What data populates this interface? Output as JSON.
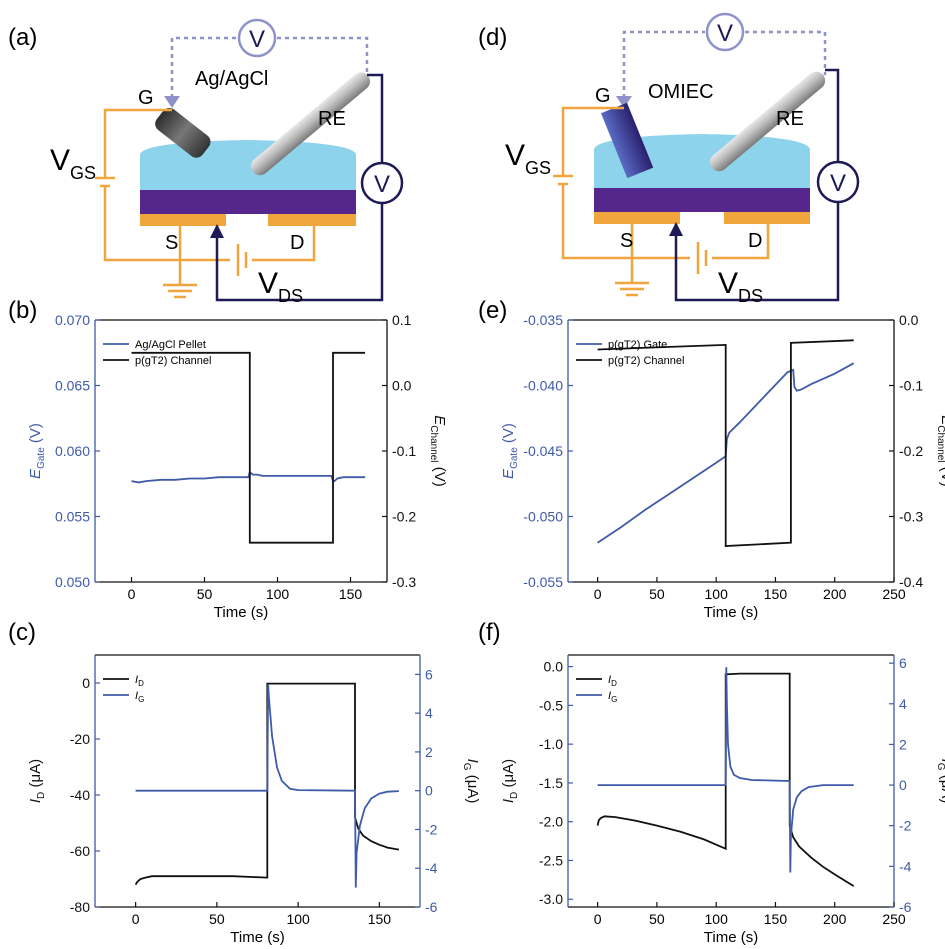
{
  "colors": {
    "blue": "#3f5aa8",
    "black": "#111111",
    "orange": "#f0a63c",
    "electrolyte": "#8dd3ec",
    "channel": "#55278d",
    "navy": "#1d1a55",
    "wire_dotted": "#8d93c8",
    "omiec": "#3a2f8a"
  },
  "panel_labels": [
    "(a)",
    "(b)",
    "(c)",
    "(d)",
    "(e)",
    "(f)"
  ],
  "schematic_a": {
    "gate_label": "G",
    "electrode_label": "Ag/AgCl",
    "re_label": "RE",
    "vgs_main": "V",
    "vgs_sub": "GS",
    "vds_main": "V",
    "vds_sub": "DS",
    "s_label": "S",
    "d_label": "D",
    "meter": "V"
  },
  "schematic_d": {
    "gate_label": "G",
    "electrode_label": "OMIEC",
    "re_label": "RE",
    "vgs_main": "V",
    "vgs_sub": "GS",
    "vds_main": "V",
    "vds_sub": "DS",
    "s_label": "S",
    "d_label": "D",
    "meter": "V"
  },
  "chart_data": [
    {
      "panel": "(b)",
      "type": "line",
      "xlabel": "Time (s)",
      "ylabel_left_main": "E",
      "ylabel_left_sub": "Gate",
      "ylabel_left_unit": " (V)",
      "ylabel_right_main": "E",
      "ylabel_right_sub": "Channel",
      "ylabel_right_unit": " (V)",
      "xlim": [
        -25,
        175
      ],
      "ylim_left": [
        0.05,
        0.07
      ],
      "ylim_right": [
        -0.3,
        0.1
      ],
      "xticks": [
        "0",
        "50",
        "100",
        "150"
      ],
      "yticks_left": [
        "0.050",
        "0.055",
        "0.060",
        "0.065",
        "0.070"
      ],
      "yticks_right": [
        "-0.3",
        "-0.2",
        "-0.1",
        "0.0",
        "0.1"
      ],
      "legend_position": "top-left",
      "series": [
        {
          "name": "Ag/AgCl Pellet",
          "axis": "left",
          "color": "blue",
          "x": [
            0,
            5,
            10,
            20,
            30,
            40,
            50,
            60,
            70,
            80,
            81,
            82,
            83,
            86,
            90,
            100,
            110,
            120,
            130,
            137,
            138,
            139,
            141,
            145,
            150,
            160
          ],
          "y": [
            0.0577,
            0.0576,
            0.0577,
            0.0578,
            0.0578,
            0.0579,
            0.0579,
            0.058,
            0.058,
            0.058,
            0.0584,
            0.0583,
            0.0582,
            0.0582,
            0.0581,
            0.0581,
            0.0581,
            0.0581,
            0.0581,
            0.0581,
            0.0577,
            0.0577,
            0.0579,
            0.058,
            0.058,
            0.058
          ]
        },
        {
          "name": "p(gT2) Channel",
          "axis": "right",
          "color": "black",
          "x": [
            0,
            81,
            81,
            138,
            138,
            160
          ],
          "y": [
            0.05,
            0.05,
            -0.24,
            -0.24,
            0.05,
            0.05
          ]
        }
      ]
    },
    {
      "panel": "(c)",
      "type": "line",
      "xlabel": "Time (s)",
      "ylabel_left_main": "I",
      "ylabel_left_sub": "D",
      "ylabel_left_unit": " (μA)",
      "ylabel_right_main": "I",
      "ylabel_right_sub": "G",
      "ylabel_right_unit": " (μA)",
      "xlim": [
        -25,
        175
      ],
      "ylim_left": [
        -80,
        10
      ],
      "ylim_right": [
        -6,
        7
      ],
      "xticks": [
        "0",
        "50",
        "100",
        "150"
      ],
      "yticks_left": [
        "-80",
        "-60",
        "-40",
        "-20",
        "0"
      ],
      "yticks_right": [
        "-6",
        "-4",
        "-2",
        "0",
        "2",
        "4",
        "6"
      ],
      "legend_position": "top-left",
      "series": [
        {
          "name": "I",
          "sub": "D",
          "axis": "left",
          "color": "black",
          "x": [
            0,
            1,
            3,
            6,
            10,
            20,
            40,
            60,
            81,
            81,
            100,
            135,
            135,
            137,
            140,
            145,
            150,
            155,
            162
          ],
          "y": [
            -72,
            -71,
            -70,
            -69.5,
            -69,
            -69,
            -69,
            -69,
            -69.5,
            -0.2,
            -0.2,
            -0.2,
            -48,
            -52,
            -54.5,
            -56.5,
            -57.8,
            -58.8,
            -59.5
          ]
        },
        {
          "name": "I",
          "sub": "G",
          "axis": "right",
          "color": "blue",
          "x": [
            0,
            81,
            81.5,
            82,
            84,
            87,
            90,
            95,
            100,
            135,
            135.5,
            136,
            138,
            141,
            145,
            150,
            155,
            162
          ],
          "y": [
            0,
            0,
            5.5,
            4.8,
            2.8,
            1.2,
            0.5,
            0.1,
            0.03,
            0,
            -5,
            -3.2,
            -1.8,
            -0.9,
            -0.4,
            -0.15,
            -0.05,
            -0.02
          ]
        }
      ]
    },
    {
      "panel": "(e)",
      "type": "line",
      "xlabel": "Time (s)",
      "ylabel_left_main": "E",
      "ylabel_left_sub": "Gate",
      "ylabel_left_unit": " (V)",
      "ylabel_right_main": "E",
      "ylabel_right_sub": "Channel",
      "ylabel_right_unit": " (V)",
      "xlim": [
        -25,
        250
      ],
      "ylim_left": [
        -0.055,
        -0.035
      ],
      "ylim_right": [
        -0.4,
        0.0
      ],
      "xticks": [
        "0",
        "50",
        "100",
        "150",
        "200",
        "250"
      ],
      "yticks_left": [
        "-0.055",
        "-0.050",
        "-0.045",
        "-0.040",
        "-0.035"
      ],
      "yticks_right": [
        "-0.4",
        "-0.3",
        "-0.2",
        "-0.1",
        "0.0"
      ],
      "legend_position": "top-left",
      "series": [
        {
          "name": "p(gT2) Gate",
          "axis": "left",
          "color": "blue",
          "x": [
            0,
            20,
            40,
            60,
            80,
            100,
            108,
            109,
            111,
            120,
            140,
            160,
            165,
            166,
            168,
            172,
            180,
            200,
            216
          ],
          "y": [
            -0.052,
            -0.0508,
            -0.0495,
            -0.0483,
            -0.0471,
            -0.0459,
            -0.0454,
            -0.0441,
            -0.0436,
            -0.0428,
            -0.0409,
            -0.039,
            -0.0388,
            -0.0401,
            -0.0404,
            -0.0403,
            -0.0399,
            -0.0391,
            -0.0383
          ]
        },
        {
          "name": "p(gT2) Channel",
          "axis": "right",
          "color": "black",
          "x": [
            0,
            108,
            108,
            163,
            163,
            216
          ],
          "y": [
            -0.045,
            -0.038,
            -0.345,
            -0.34,
            -0.035,
            -0.031
          ]
        }
      ]
    },
    {
      "panel": "(f)",
      "type": "line",
      "xlabel": "Time (s)",
      "ylabel_left_main": "I",
      "ylabel_left_sub": "D",
      "ylabel_left_unit": " (μA)",
      "ylabel_right_main": "I",
      "ylabel_right_sub": "G",
      "ylabel_right_unit": " (μA)",
      "xlim": [
        -25,
        250
      ],
      "ylim_left": [
        -3.1,
        0.15
      ],
      "ylim_right": [
        -6,
        6.4
      ],
      "xticks": [
        "0",
        "50",
        "100",
        "150",
        "200",
        "250"
      ],
      "yticks_left": [
        "-3.0",
        "-2.5",
        "-2.0",
        "-1.5",
        "-1.0",
        "-0.5",
        "0.0"
      ],
      "yticks_right": [
        "-6",
        "-4",
        "-2",
        "0",
        "2",
        "4",
        "6"
      ],
      "legend_position": "top-left",
      "series": [
        {
          "name": "I",
          "sub": "D",
          "axis": "left",
          "color": "black",
          "x": [
            0,
            1,
            3,
            6,
            15,
            30,
            50,
            70,
            90,
            108,
            108,
            120,
            140,
            162,
            162,
            165,
            170,
            180,
            190,
            200,
            216
          ],
          "y": [
            -2.05,
            -1.98,
            -1.95,
            -1.93,
            -1.94,
            -1.98,
            -2.05,
            -2.13,
            -2.23,
            -2.35,
            -0.1,
            -0.09,
            -0.09,
            -0.09,
            -2.05,
            -2.2,
            -2.32,
            -2.46,
            -2.58,
            -2.68,
            -2.83
          ]
        },
        {
          "name": "I",
          "sub": "G",
          "axis": "right",
          "color": "blue",
          "x": [
            0,
            108,
            108.5,
            109,
            110,
            112,
            115,
            120,
            130,
            162,
            162.5,
            163,
            165,
            168,
            172,
            178,
            190,
            216
          ],
          "y": [
            0,
            0,
            5.8,
            4,
            2,
            0.9,
            0.5,
            0.35,
            0.25,
            0.2,
            -4.3,
            -2.5,
            -1.2,
            -0.6,
            -0.3,
            -0.1,
            0,
            0
          ]
        }
      ]
    }
  ]
}
